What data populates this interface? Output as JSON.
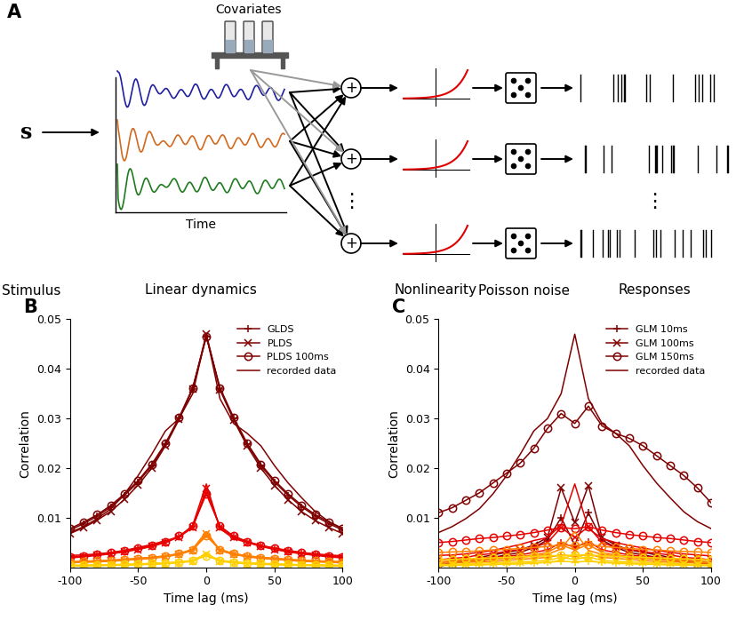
{
  "diagram": {
    "panel_label": "A",
    "stimulus_symbol": "s",
    "covariates_label": "Covariates",
    "time_label": "Time",
    "sum_symbol": "+",
    "ellipsis": "⋮",
    "trace_colors": [
      "#1f1f9f",
      "#d2691e",
      "#1e7b1e"
    ],
    "nonlinearity_color": "#e00000",
    "stage_labels": [
      "Stimulus",
      "Linear dynamics",
      "Nonlinearity",
      "Poisson noise",
      "Responses"
    ]
  },
  "chart_data": [
    {
      "type": "line",
      "panel_label": "B",
      "x_label": "Time lag (ms)",
      "y_label": "Correlation",
      "x": [
        -100,
        -90,
        -80,
        -70,
        -60,
        -50,
        -40,
        -30,
        -20,
        -10,
        0,
        10,
        20,
        30,
        40,
        50,
        60,
        70,
        80,
        90,
        100
      ],
      "xlim": [
        -100,
        100
      ],
      "xticks": [
        -100,
        -50,
        0,
        50,
        100
      ],
      "ylim": [
        0,
        0.05
      ],
      "yticks": [
        0.01,
        0.02,
        0.03,
        0.04,
        0.05
      ],
      "legend": "upper right",
      "series": [
        {
          "name": "GLDS",
          "color": "#7f0000",
          "marker": "plus",
          "values": [
            0.0075,
            0.0088,
            0.0103,
            0.0122,
            0.0145,
            0.0172,
            0.0205,
            0.0248,
            0.03,
            0.036,
            0.0465,
            0.036,
            0.03,
            0.0248,
            0.0205,
            0.0172,
            0.0145,
            0.0122,
            0.0103,
            0.0088,
            0.0075
          ]
        },
        {
          "name": "PLDS",
          "color": "#7f0000",
          "marker": "x",
          "values": [
            0.0068,
            0.008,
            0.0095,
            0.0113,
            0.0137,
            0.0166,
            0.02,
            0.0245,
            0.0298,
            0.036,
            0.047,
            0.0358,
            0.0297,
            0.0244,
            0.02,
            0.0165,
            0.0136,
            0.0112,
            0.0094,
            0.008,
            0.0068
          ]
        },
        {
          "name": "PLDS 100ms",
          "color": "#7f0000",
          "marker": "circle",
          "values": [
            0.0078,
            0.0091,
            0.0106,
            0.0125,
            0.0148,
            0.0175,
            0.0208,
            0.025,
            0.0302,
            0.0362,
            0.0465,
            0.0362,
            0.0302,
            0.025,
            0.0208,
            0.0175,
            0.0148,
            0.0125,
            0.0106,
            0.0091,
            0.0078
          ]
        },
        {
          "name": "recorded data",
          "color": "#7f0000",
          "marker": "none",
          "values": [
            0.007,
            0.0082,
            0.0098,
            0.0118,
            0.0148,
            0.0185,
            0.0228,
            0.0275,
            0.03,
            0.035,
            0.047,
            0.034,
            0.029,
            0.027,
            0.0245,
            0.0205,
            0.017,
            0.014,
            0.0112,
            0.0092,
            0.0078
          ]
        },
        {
          "name": null,
          "color": "#e60000",
          "marker": "plus",
          "values": [
            0.002,
            0.0022,
            0.0025,
            0.0028,
            0.0032,
            0.0037,
            0.0043,
            0.0051,
            0.0062,
            0.0082,
            0.015,
            0.0082,
            0.0062,
            0.0051,
            0.0043,
            0.0037,
            0.0032,
            0.0028,
            0.0025,
            0.0022,
            0.002
          ]
        },
        {
          "name": null,
          "color": "#e60000",
          "marker": "x",
          "values": [
            0.0019,
            0.0021,
            0.0024,
            0.0027,
            0.0031,
            0.0036,
            0.0042,
            0.005,
            0.0061,
            0.008,
            0.0158,
            0.008,
            0.0061,
            0.005,
            0.0042,
            0.0036,
            0.0031,
            0.0027,
            0.0024,
            0.0021,
            0.0019
          ]
        },
        {
          "name": null,
          "color": "#e60000",
          "marker": "circle",
          "values": [
            0.0021,
            0.0023,
            0.0026,
            0.0029,
            0.0033,
            0.0038,
            0.0044,
            0.0052,
            0.0063,
            0.0083,
            0.0148,
            0.0083,
            0.0063,
            0.0052,
            0.0044,
            0.0038,
            0.0033,
            0.0029,
            0.0026,
            0.0023,
            0.0021
          ]
        },
        {
          "name": null,
          "color": "#e60000",
          "marker": "none",
          "values": [
            0.0024,
            0.0025,
            0.0027,
            0.003,
            0.0034,
            0.004,
            0.0046,
            0.0054,
            0.006,
            0.0085,
            0.0168,
            0.0078,
            0.0058,
            0.005,
            0.0044,
            0.0039,
            0.0034,
            0.003,
            0.0027,
            0.0025,
            0.0023
          ]
        },
        {
          "name": null,
          "color": "#ff7f00",
          "marker": "plus",
          "values": [
            0.001,
            0.0011,
            0.0012,
            0.0013,
            0.0015,
            0.0017,
            0.0019,
            0.0022,
            0.0027,
            0.0035,
            0.0065,
            0.0035,
            0.0027,
            0.0022,
            0.0019,
            0.0017,
            0.0015,
            0.0013,
            0.0012,
            0.0011,
            0.001
          ]
        },
        {
          "name": null,
          "color": "#ff7f00",
          "marker": "x",
          "values": [
            0.0009,
            0.001,
            0.0011,
            0.0012,
            0.0014,
            0.0016,
            0.0018,
            0.0021,
            0.0026,
            0.0034,
            0.0068,
            0.0034,
            0.0026,
            0.0021,
            0.0018,
            0.0016,
            0.0014,
            0.0012,
            0.0011,
            0.001,
            0.0009
          ]
        },
        {
          "name": null,
          "color": "#ff7f00",
          "marker": "circle",
          "values": [
            0.0011,
            0.0012,
            0.0013,
            0.0014,
            0.0016,
            0.0018,
            0.002,
            0.0023,
            0.0028,
            0.0036,
            0.0063,
            0.0036,
            0.0028,
            0.0023,
            0.002,
            0.0018,
            0.0016,
            0.0014,
            0.0013,
            0.0012,
            0.0011
          ]
        },
        {
          "name": null,
          "color": "#ff7f00",
          "marker": "none",
          "values": [
            0.0011,
            0.0012,
            0.0013,
            0.0014,
            0.0016,
            0.0018,
            0.002,
            0.0023,
            0.0026,
            0.0037,
            0.0072,
            0.0034,
            0.0026,
            0.0023,
            0.002,
            0.0018,
            0.0016,
            0.0014,
            0.0013,
            0.0012,
            0.0011
          ]
        },
        {
          "name": null,
          "color": "#ffd000",
          "marker": "plus",
          "values": [
            0.0003,
            0.0003,
            0.0004,
            0.0004,
            0.0005,
            0.0006,
            0.0007,
            0.0008,
            0.001,
            0.0013,
            0.0024,
            0.0013,
            0.001,
            0.0008,
            0.0007,
            0.0006,
            0.0005,
            0.0004,
            0.0004,
            0.0003,
            0.0003
          ]
        },
        {
          "name": null,
          "color": "#ffd000",
          "marker": "x",
          "values": [
            0.0002,
            0.0003,
            0.0003,
            0.0004,
            0.0004,
            0.0005,
            0.0006,
            0.0007,
            0.0009,
            0.0012,
            0.0026,
            0.0012,
            0.0009,
            0.0007,
            0.0006,
            0.0005,
            0.0004,
            0.0004,
            0.0003,
            0.0003,
            0.0002
          ]
        },
        {
          "name": null,
          "color": "#ffd000",
          "marker": "circle",
          "values": [
            0.0004,
            0.0004,
            0.0005,
            0.0005,
            0.0006,
            0.0007,
            0.0008,
            0.0009,
            0.0011,
            0.0014,
            0.0023,
            0.0014,
            0.0011,
            0.0009,
            0.0008,
            0.0007,
            0.0006,
            0.0005,
            0.0005,
            0.0004,
            0.0004
          ]
        },
        {
          "name": null,
          "color": "#ffd000",
          "marker": "none",
          "values": [
            0.0004,
            0.0004,
            0.0005,
            0.0005,
            0.0006,
            0.0006,
            0.0007,
            0.0008,
            0.001,
            0.0014,
            0.0028,
            0.0013,
            0.001,
            0.0008,
            0.0007,
            0.0006,
            0.0006,
            0.0005,
            0.0005,
            0.0004,
            0.0004
          ]
        }
      ]
    },
    {
      "type": "line",
      "panel_label": "C",
      "x_label": "Time lag (ms)",
      "y_label": "Correlation",
      "x": [
        -100,
        -90,
        -80,
        -70,
        -60,
        -50,
        -40,
        -30,
        -20,
        -10,
        0,
        10,
        20,
        30,
        40,
        50,
        60,
        70,
        80,
        90,
        100
      ],
      "xlim": [
        -100,
        100
      ],
      "xticks": [
        -100,
        -50,
        0,
        50,
        100
      ],
      "ylim": [
        0,
        0.05
      ],
      "yticks": [
        0.01,
        0.02,
        0.03,
        0.04,
        0.05
      ],
      "legend": "upper right",
      "series": [
        {
          "name": "GLM 10ms",
          "color": "#7f0000",
          "marker": "plus",
          "values": [
            0.0,
            0.001,
            0.0015,
            0.001,
            0.002,
            0.0025,
            0.003,
            0.004,
            0.0055,
            0.01,
            0.0045,
            0.011,
            0.0055,
            0.004,
            0.003,
            0.0025,
            0.002,
            0.0015,
            0.001,
            0.001,
            0.0005
          ]
        },
        {
          "name": "GLM 100ms",
          "color": "#7f0000",
          "marker": "x",
          "values": [
            0.0005,
            0.0008,
            0.0012,
            0.002,
            0.0025,
            0.003,
            0.0035,
            0.0045,
            0.006,
            0.016,
            0.009,
            0.0165,
            0.006,
            0.0045,
            0.0035,
            0.003,
            0.0025,
            0.002,
            0.0012,
            0.0008,
            0.0005
          ]
        },
        {
          "name": "GLM 150ms",
          "color": "#7f0000",
          "marker": "circle",
          "values": [
            0.011,
            0.012,
            0.0135,
            0.015,
            0.017,
            0.019,
            0.021,
            0.024,
            0.028,
            0.031,
            0.029,
            0.0325,
            0.0285,
            0.027,
            0.026,
            0.0245,
            0.0225,
            0.0205,
            0.0185,
            0.016,
            0.013
          ]
        },
        {
          "name": "recorded data",
          "color": "#7f0000",
          "marker": "none",
          "values": [
            0.007,
            0.0082,
            0.0098,
            0.0118,
            0.0148,
            0.0185,
            0.0228,
            0.0275,
            0.03,
            0.035,
            0.047,
            0.034,
            0.029,
            0.027,
            0.0245,
            0.0205,
            0.017,
            0.014,
            0.0112,
            0.0092,
            0.0078
          ]
        },
        {
          "name": null,
          "color": "#e60000",
          "marker": "plus",
          "values": [
            0.001,
            0.0012,
            0.0015,
            0.0018,
            0.002,
            0.0022,
            0.0025,
            0.003,
            0.0035,
            0.005,
            0.004,
            0.0052,
            0.0035,
            0.003,
            0.0025,
            0.0022,
            0.002,
            0.0018,
            0.0015,
            0.0012,
            0.001
          ]
        },
        {
          "name": null,
          "color": "#e60000",
          "marker": "x",
          "values": [
            0.0015,
            0.0018,
            0.002,
            0.0025,
            0.0028,
            0.0032,
            0.0036,
            0.004,
            0.005,
            0.008,
            0.006,
            0.0082,
            0.005,
            0.004,
            0.0036,
            0.0032,
            0.0028,
            0.0025,
            0.002,
            0.0018,
            0.0015
          ]
        },
        {
          "name": null,
          "color": "#e60000",
          "marker": "circle",
          "values": [
            0.005,
            0.0052,
            0.0055,
            0.0058,
            0.006,
            0.0063,
            0.0066,
            0.007,
            0.0075,
            0.008,
            0.0078,
            0.0082,
            0.0075,
            0.007,
            0.0066,
            0.0063,
            0.006,
            0.0058,
            0.0055,
            0.0052,
            0.005
          ]
        },
        {
          "name": null,
          "color": "#e60000",
          "marker": "none",
          "values": [
            0.0024,
            0.0025,
            0.0027,
            0.003,
            0.0034,
            0.004,
            0.0046,
            0.0054,
            0.006,
            0.0085,
            0.0168,
            0.0078,
            0.0058,
            0.005,
            0.0044,
            0.0039,
            0.0034,
            0.003,
            0.0027,
            0.0025,
            0.0023
          ]
        },
        {
          "name": null,
          "color": "#ff7f00",
          "marker": "plus",
          "values": [
            0.0008,
            0.0009,
            0.001,
            0.0011,
            0.0012,
            0.0014,
            0.0016,
            0.0018,
            0.002,
            0.0025,
            0.0022,
            0.0026,
            0.002,
            0.0018,
            0.0016,
            0.0014,
            0.0012,
            0.0011,
            0.001,
            0.0009,
            0.0008
          ]
        },
        {
          "name": null,
          "color": "#ff7f00",
          "marker": "x",
          "values": [
            0.001,
            0.0012,
            0.0014,
            0.0016,
            0.0018,
            0.002,
            0.0022,
            0.0025,
            0.003,
            0.0045,
            0.0035,
            0.0046,
            0.003,
            0.0025,
            0.0022,
            0.002,
            0.0018,
            0.0016,
            0.0014,
            0.0012,
            0.001
          ]
        },
        {
          "name": null,
          "color": "#ff7f00",
          "marker": "circle",
          "values": [
            0.003,
            0.0031,
            0.0032,
            0.0033,
            0.0035,
            0.0036,
            0.0038,
            0.004,
            0.0042,
            0.0045,
            0.0044,
            0.0046,
            0.0042,
            0.004,
            0.0038,
            0.0036,
            0.0035,
            0.0033,
            0.0032,
            0.0031,
            0.003
          ]
        },
        {
          "name": null,
          "color": "#ff7f00",
          "marker": "none",
          "values": [
            0.0011,
            0.0012,
            0.0013,
            0.0014,
            0.0016,
            0.0018,
            0.002,
            0.0023,
            0.0026,
            0.0037,
            0.0072,
            0.0034,
            0.0026,
            0.0023,
            0.002,
            0.0018,
            0.0016,
            0.0014,
            0.0013,
            0.0012,
            0.0011
          ]
        },
        {
          "name": null,
          "color": "#ffd000",
          "marker": "plus",
          "values": [
            0.0003,
            0.0004,
            0.0004,
            0.0005,
            0.0006,
            0.0007,
            0.0008,
            0.0009,
            0.001,
            0.0012,
            0.0011,
            0.0012,
            0.001,
            0.0009,
            0.0008,
            0.0007,
            0.0006,
            0.0005,
            0.0004,
            0.0004,
            0.0003
          ]
        },
        {
          "name": null,
          "color": "#ffd000",
          "marker": "x",
          "values": [
            0.0005,
            0.0006,
            0.0007,
            0.0008,
            0.0009,
            0.001,
            0.0011,
            0.0012,
            0.0014,
            0.002,
            0.0016,
            0.0021,
            0.0014,
            0.0012,
            0.0011,
            0.001,
            0.0009,
            0.0008,
            0.0007,
            0.0006,
            0.0005
          ]
        },
        {
          "name": null,
          "color": "#ffd000",
          "marker": "circle",
          "values": [
            0.0015,
            0.0016,
            0.0017,
            0.0018,
            0.0019,
            0.002,
            0.0021,
            0.0022,
            0.0023,
            0.0024,
            0.0024,
            0.0025,
            0.0023,
            0.0022,
            0.0021,
            0.002,
            0.0019,
            0.0018,
            0.0017,
            0.0016,
            0.0015
          ]
        },
        {
          "name": null,
          "color": "#ffd000",
          "marker": "none",
          "values": [
            0.0004,
            0.0004,
            0.0005,
            0.0005,
            0.0006,
            0.0006,
            0.0007,
            0.0008,
            0.001,
            0.0014,
            0.0028,
            0.0013,
            0.001,
            0.0008,
            0.0007,
            0.0006,
            0.0006,
            0.0005,
            0.0005,
            0.0004,
            0.0004
          ]
        }
      ]
    }
  ]
}
